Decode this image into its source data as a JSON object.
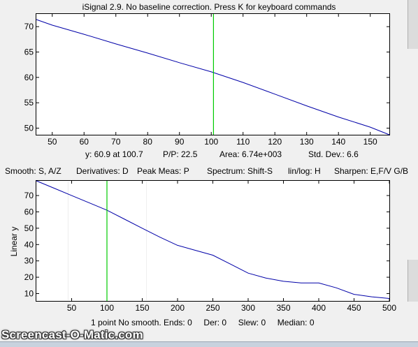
{
  "window": {
    "title": "iSignal 2.9. No baseline correction.  Press K for keyboard commands"
  },
  "top_panel": {
    "status": {
      "y_readout": "y: 60.9 at 100.7",
      "pp": "P/P: 22.5",
      "area": "Area: 6.74e+003",
      "std": "Std. Dev.: 6.6"
    }
  },
  "menu_line": {
    "smooth": "Smooth: S, A/Z",
    "derivatives": "Derivatives: D",
    "peak": "Peak Meas: P",
    "spectrum": "Spectrum: Shift-S",
    "linlog": "lin/log: H",
    "sharpen": "Sharpen: E,F/V G/B"
  },
  "bottom_panel": {
    "ylabel": "Linear y",
    "status": "1 point No smooth. Ends: 0     Der: 0     Slew: 0     Median: 0"
  },
  "watermark": "Screencast-O-Matic.com",
  "colors": {
    "trace": "#0000a8",
    "cursor": "#00cc00",
    "background": "#f0f0f0",
    "plot_bg": "#ffffff"
  },
  "chart_data": [
    {
      "type": "line",
      "title": "iSignal 2.9. No baseline correction.  Press K for keyboard commands",
      "xlabel": "",
      "ylabel": "",
      "xlim": [
        45,
        156
      ],
      "ylim": [
        48.7,
        72.5
      ],
      "xticks": [
        50,
        60,
        70,
        80,
        90,
        100,
        110,
        120,
        130,
        140,
        150
      ],
      "yticks": [
        50,
        55,
        60,
        65,
        70
      ],
      "cursor_x": 100.7,
      "series": [
        {
          "x": [
            45,
            50,
            60,
            70,
            80,
            90,
            100,
            110,
            120,
            130,
            140,
            150,
            156
          ],
          "values": [
            71.4,
            70.3,
            68.5,
            66.6,
            64.8,
            62.9,
            61.1,
            59.0,
            56.7,
            54.4,
            52.2,
            50.2,
            48.7
          ]
        }
      ]
    },
    {
      "type": "line",
      "title": "",
      "xlabel": "",
      "ylabel": "Linear y",
      "xlim": [
        0,
        500
      ],
      "ylim": [
        5.5,
        79
      ],
      "xticks": [
        50,
        100,
        150,
        200,
        250,
        300,
        350,
        400,
        450,
        500
      ],
      "yticks": [
        10,
        20,
        30,
        40,
        50,
        60,
        70
      ],
      "cursor_x": 100,
      "series": [
        {
          "x": [
            0,
            25,
            50,
            75,
            100,
            125,
            150,
            175,
            200,
            225,
            250,
            275,
            300,
            325,
            350,
            375,
            400,
            425,
            450,
            475,
            500
          ],
          "values": [
            79,
            74.5,
            70,
            65.5,
            61,
            55.5,
            50,
            44.5,
            39.5,
            36.5,
            33.5,
            28,
            22.5,
            19.5,
            17.5,
            16.5,
            16.5,
            13.5,
            9.5,
            8,
            7
          ]
        }
      ]
    }
  ]
}
